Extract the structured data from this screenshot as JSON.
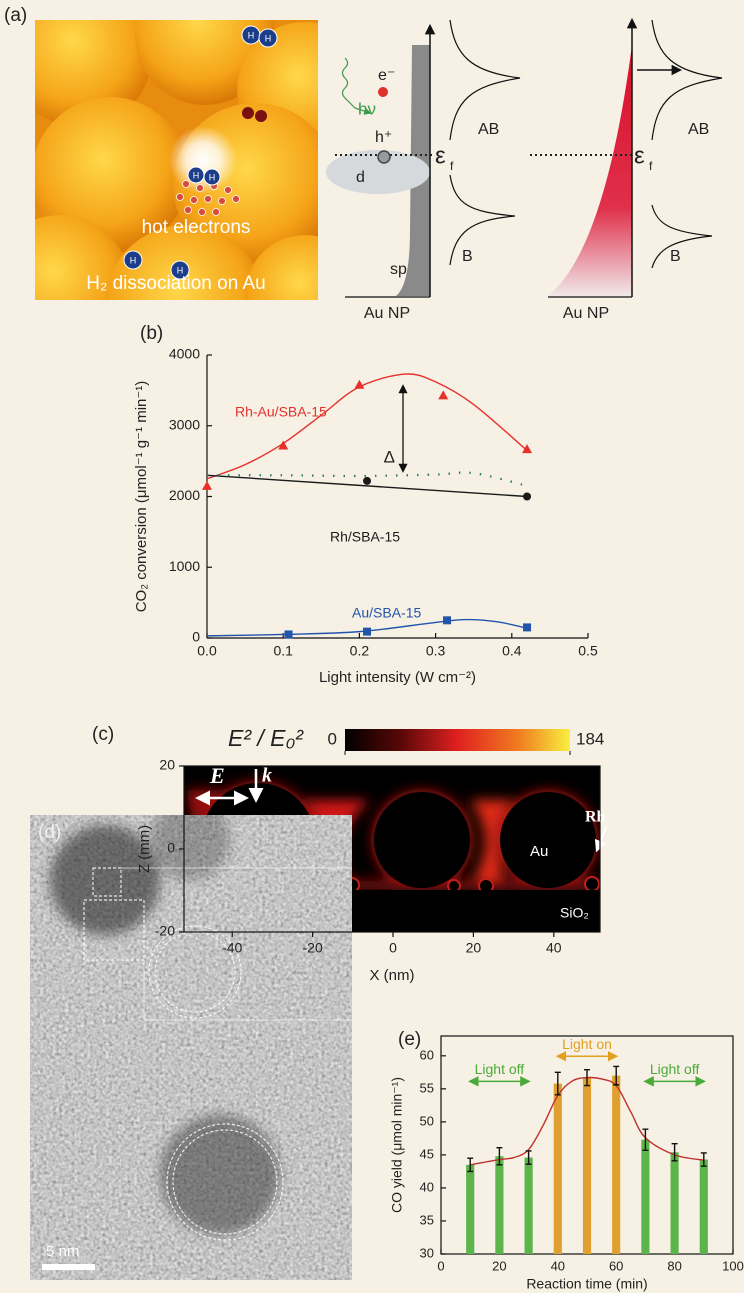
{
  "panel_a": {
    "label": "(a)",
    "illustration": {
      "atom": "H",
      "hot_electrons": "hot electrons",
      "caption": "H₂ dissociation on Au"
    },
    "diagrams": [
      {
        "electron": "e⁻",
        "photon": "hν",
        "hole": "h⁺",
        "d_band": "d",
        "sp_band": "sp",
        "fermi": {
          "symbol": "ε",
          "subscript": "f"
        },
        "upper": "AB",
        "lower": "B",
        "axis_label": "Au NP"
      },
      {
        "fermi": {
          "symbol": "ε",
          "subscript": "f"
        },
        "upper": "AB",
        "lower": "B",
        "axis_label": "Au NP"
      }
    ]
  },
  "chart_data": [
    {
      "type": "line",
      "label": "(b)",
      "xlabel": "Light intensity (W cm⁻²)",
      "ylabel": "CO₂ conversion (μmol⁻¹ g⁻¹ min⁻¹)",
      "xlim": [
        0,
        0.5
      ],
      "ylim": [
        0,
        4000
      ],
      "xticks": [
        {
          "value": 0,
          "label": "0.0"
        },
        {
          "value": 0.1,
          "label": "0.1"
        },
        {
          "value": 0.2,
          "label": "0.2"
        },
        {
          "value": 0.3,
          "label": "0.3"
        },
        {
          "value": 0.4,
          "label": "0.4"
        },
        {
          "value": 0.5,
          "label": "0.5"
        }
      ],
      "yticks": [
        0,
        1000,
        2000,
        3000,
        4000
      ],
      "series": [
        {
          "name": "Rh-Au/SBA-15",
          "color": "#e8302a",
          "marker": "triangle",
          "x": [
            0,
            0.1,
            0.2,
            0.31,
            0.42
          ],
          "values": [
            2150,
            2720,
            3580,
            3430,
            2670
          ]
        },
        {
          "color": "#e8302a",
          "line": "solid",
          "smooth": true,
          "x": [
            0,
            0.05,
            0.1,
            0.15,
            0.2,
            0.26,
            0.3,
            0.35,
            0.42
          ],
          "values": [
            2250,
            2450,
            2750,
            3150,
            3550,
            3730,
            3620,
            3300,
            2650
          ]
        },
        {
          "name": "Rh/SBA-15",
          "color": "#1a1a1a",
          "marker": "circle",
          "x": [
            0.21,
            0.42
          ],
          "values": [
            2220,
            2000
          ]
        },
        {
          "color": "#1a1a1a",
          "line": "solid",
          "x": [
            0,
            0.42
          ],
          "values": [
            2300,
            2000
          ]
        },
        {
          "color": "#2a7a6a",
          "line": "dotted",
          "smooth": true,
          "x": [
            0,
            0.1,
            0.2,
            0.3,
            0.35,
            0.42
          ],
          "values": [
            2300,
            2300,
            2290,
            2310,
            2330,
            2150
          ]
        },
        {
          "name": "Au/SBA-15",
          "color": "#2255aa",
          "marker": "square",
          "x": [
            0.107,
            0.21,
            0.315,
            0.42
          ],
          "values": [
            50,
            90,
            250,
            150
          ]
        },
        {
          "color": "#2255aa",
          "line": "solid",
          "smooth": true,
          "x": [
            0,
            0.1,
            0.2,
            0.3,
            0.34,
            0.38,
            0.42
          ],
          "values": [
            30,
            50,
            90,
            220,
            260,
            230,
            140
          ]
        }
      ],
      "annotations": [
        "Δ"
      ]
    },
    {
      "type": "heatmap",
      "label": "(c)",
      "colorbar_title": "E² / E₀²",
      "clim": [
        0,
        184
      ],
      "cticks": [
        0,
        184
      ],
      "xlim": [
        -52,
        51.5
      ],
      "ylim": [
        -20,
        20
      ],
      "xticks": [
        -40,
        -20,
        0,
        20,
        40
      ],
      "yticks": [
        -20,
        0,
        20
      ],
      "xlabel": "X (nm)",
      "ylabel": "Z (mm)",
      "annotations": [
        "E",
        "k",
        "Au",
        "Rh",
        "SiO₂"
      ]
    },
    {
      "type": "bar",
      "label": "(e)",
      "xlabel": "Reaction time (min)",
      "ylabel": "CO yield (μmol min⁻¹)",
      "xlim": [
        0,
        100
      ],
      "ylim": [
        30,
        63
      ],
      "xticks": [
        0,
        20,
        40,
        60,
        80,
        100
      ],
      "yticks": [
        30,
        35,
        40,
        45,
        50,
        55,
        60
      ],
      "x": [
        10,
        20,
        30,
        40,
        50,
        60,
        70,
        80,
        90
      ],
      "values": [
        43.5,
        44.8,
        44.6,
        55.8,
        56.7,
        57.0,
        47.3,
        45.4,
        44.3
      ],
      "errors": [
        1,
        1.3,
        1,
        1.7,
        1.2,
        1.4,
        1.6,
        1.3,
        1
      ],
      "colors": [
        "#5cb54a",
        "#5cb54a",
        "#5cb54a",
        "#e0a030",
        "#e0a030",
        "#e0a030",
        "#5cb54a",
        "#5cb54a",
        "#5cb54a"
      ],
      "fit": {
        "color": "#c0302a",
        "x": [
          10,
          20,
          25,
          30,
          35,
          40,
          45,
          50,
          55,
          60,
          65,
          70,
          80,
          90
        ],
        "values": [
          43.5,
          44.3,
          44.6,
          45.8,
          49.5,
          54,
          56.2,
          56.7,
          56.5,
          55.5,
          51.5,
          47.6,
          45,
          44.2
        ]
      },
      "annotations": [
        {
          "text": "Light off",
          "color": "#4aaa3a"
        },
        {
          "text": "Light on",
          "color": "#e0a020"
        },
        {
          "text": "Light off",
          "color": "#4aaa3a"
        }
      ]
    }
  ],
  "panel_d": {
    "label": "(d)",
    "scale_bar": "5 nm"
  }
}
